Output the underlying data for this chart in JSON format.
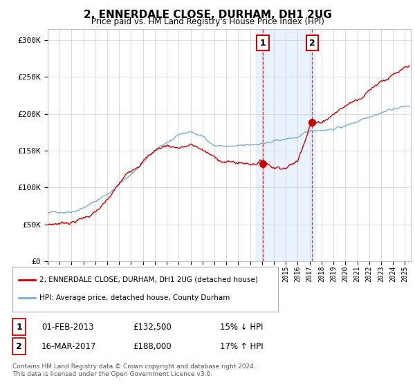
{
  "title": "2, ENNERDALE CLOSE, DURHAM, DH1 2UG",
  "subtitle": "Price paid vs. HM Land Registry's House Price Index (HPI)",
  "ylabel_ticks": [
    "£0",
    "£50K",
    "£100K",
    "£150K",
    "£200K",
    "£250K",
    "£300K"
  ],
  "ytick_values": [
    0,
    50000,
    100000,
    150000,
    200000,
    250000,
    300000
  ],
  "ylim": [
    0,
    315000
  ],
  "xlim_start": 1995.0,
  "xlim_end": 2025.5,
  "hpi_color": "#7aaed6",
  "price_color": "#cc0000",
  "marker1_date": 2013.08,
  "marker1_value": 132500,
  "marker2_date": 2017.21,
  "marker2_value": 188000,
  "shade_x1": 2012.5,
  "shade_x2": 2017.5,
  "legend_label1": "2, ENNERDALE CLOSE, DURHAM, DH1 2UG (detached house)",
  "legend_label2": "HPI: Average price, detached house, County Durham",
  "note1_date": "01-FEB-2013",
  "note1_price": "£132,500",
  "note1_change": "15% ↓ HPI",
  "note2_date": "16-MAR-2017",
  "note2_price": "£188,000",
  "note2_change": "17% ↑ HPI",
  "footer": "Contains HM Land Registry data © Crown copyright and database right 2024.\nThis data is licensed under the Open Government Licence v3.0.",
  "background_color": "#ffffff",
  "grid_color": "#cccccc",
  "hpi_knots_x": [
    1995,
    1996,
    1997,
    1998,
    1999,
    2000,
    2001,
    2002,
    2003,
    2004,
    2005,
    2006,
    2007,
    2008,
    2009,
    2010,
    2011,
    2012,
    2013,
    2014,
    2015,
    2016,
    2017,
    2018,
    2019,
    2020,
    2021,
    2022,
    2023,
    2024,
    2025
  ],
  "hpi_knots_y": [
    65000,
    67000,
    70000,
    77000,
    85000,
    95000,
    108000,
    122000,
    138000,
    152000,
    163000,
    170000,
    175000,
    168000,
    157000,
    156000,
    154000,
    153000,
    157000,
    158000,
    160000,
    163000,
    168000,
    172000,
    175000,
    178000,
    185000,
    195000,
    202000,
    207000,
    210000
  ],
  "price_knots_x": [
    1995,
    1996,
    1997,
    1998,
    1999,
    2000,
    2001,
    2002,
    2003,
    2004,
    2005,
    2006,
    2007,
    2008,
    2009,
    2010,
    2011,
    2012,
    2013,
    2014,
    2015,
    2016,
    2017,
    2018,
    2019,
    2020,
    2021,
    2022,
    2023,
    2024,
    2025
  ],
  "price_knots_y": [
    50000,
    52000,
    55000,
    60000,
    68000,
    80000,
    100000,
    118000,
    135000,
    148000,
    155000,
    153000,
    155000,
    148000,
    135000,
    130000,
    128000,
    127000,
    132500,
    125000,
    128000,
    135000,
    188000,
    192000,
    205000,
    215000,
    225000,
    240000,
    255000,
    262000,
    265000
  ]
}
